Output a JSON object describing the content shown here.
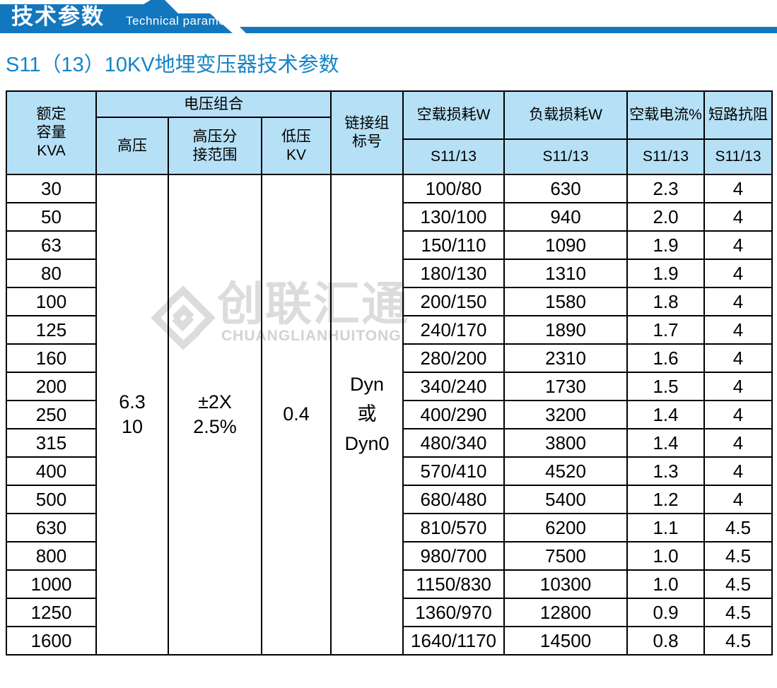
{
  "banner": {
    "title_zh": "技术参数",
    "title_en": "Technical parameter"
  },
  "page_title": "S11（13）10KV地埋变压器技术参数",
  "watermark": {
    "zh": "创联汇通",
    "en": "CHUANGLIANHUITONG"
  },
  "colors": {
    "banner_blue": "#1277bd",
    "title_blue": "#1584c6",
    "header_bg": "#b6e0f5",
    "table_border": "#000000",
    "watermark_gray": "#dcdcdc"
  },
  "table": {
    "headers": {
      "capacity": "额定\n容量\nKVA",
      "voltage_group": "电压组合",
      "hv": "高压",
      "hv_tap": "高压分\n接范围",
      "lv": "低压\nKV",
      "connection": "链接组\n标号",
      "no_load_loss": "空载损耗W",
      "load_loss": "负载损耗W",
      "no_load_current": "空载电流%",
      "impedance": "短路抗阻",
      "series": "S11/13"
    },
    "merged": {
      "hv": "6.3\n10",
      "hv_tap": "±2X\n2.5%",
      "lv": "0.4",
      "connection": "Dyn\n或\nDyn0"
    },
    "rows": [
      {
        "kva": "30",
        "no_load": "100/80",
        "load": "630",
        "current": "2.3",
        "impedance": "4"
      },
      {
        "kva": "50",
        "no_load": "130/100",
        "load": "940",
        "current": "2.0",
        "impedance": "4"
      },
      {
        "kva": "63",
        "no_load": "150/110",
        "load": "1090",
        "current": "1.9",
        "impedance": "4"
      },
      {
        "kva": "80",
        "no_load": "180/130",
        "load": "1310",
        "current": "1.9",
        "impedance": "4"
      },
      {
        "kva": "100",
        "no_load": "200/150",
        "load": "1580",
        "current": "1.8",
        "impedance": "4"
      },
      {
        "kva": "125",
        "no_load": "240/170",
        "load": "1890",
        "current": "1.7",
        "impedance": "4"
      },
      {
        "kva": "160",
        "no_load": "280/200",
        "load": "2310",
        "current": "1.6",
        "impedance": "4"
      },
      {
        "kva": "200",
        "no_load": "340/240",
        "load": "1730",
        "current": "1.5",
        "impedance": "4"
      },
      {
        "kva": "250",
        "no_load": "400/290",
        "load": "3200",
        "current": "1.4",
        "impedance": "4"
      },
      {
        "kva": "315",
        "no_load": "480/340",
        "load": "3800",
        "current": "1.4",
        "impedance": "4"
      },
      {
        "kva": "400",
        "no_load": "570/410",
        "load": "4520",
        "current": "1.3",
        "impedance": "4"
      },
      {
        "kva": "500",
        "no_load": "680/480",
        "load": "5400",
        "current": "1.2",
        "impedance": "4"
      },
      {
        "kva": "630",
        "no_load": "810/570",
        "load": "6200",
        "current": "1.1",
        "impedance": "4.5"
      },
      {
        "kva": "800",
        "no_load": "980/700",
        "load": "7500",
        "current": "1.0",
        "impedance": "4.5"
      },
      {
        "kva": "1000",
        "no_load": "1150/830",
        "load": "10300",
        "current": "1.0",
        "impedance": "4.5"
      },
      {
        "kva": "1250",
        "no_load": "1360/970",
        "load": "12800",
        "current": "0.9",
        "impedance": "4.5"
      },
      {
        "kva": "1600",
        "no_load": "1640/1170",
        "load": "14500",
        "current": "0.8",
        "impedance": "4.5"
      }
    ]
  }
}
